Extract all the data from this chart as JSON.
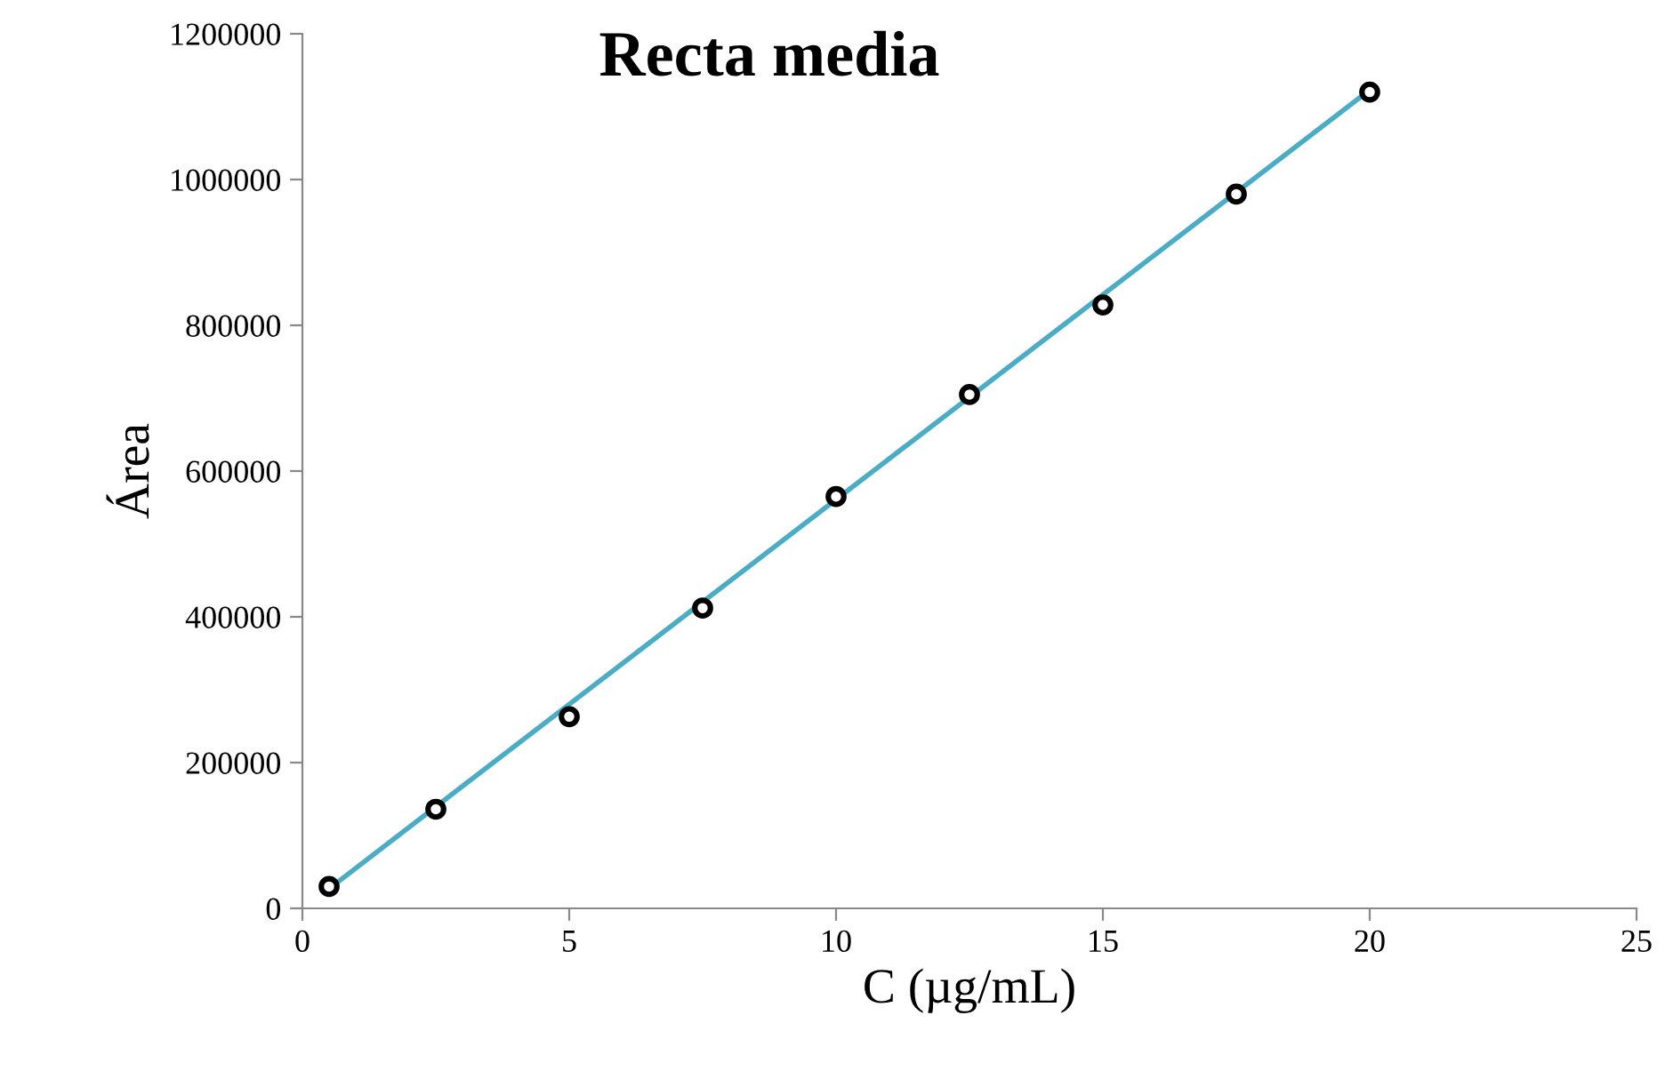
{
  "chart_data": {
    "type": "scatter",
    "title": "Recta media",
    "xlabel": "C (µg/mL)",
    "ylabel": "Área",
    "x": [
      0.5,
      2.5,
      5,
      7.5,
      10,
      12.5,
      15,
      17.5,
      20
    ],
    "series": [
      {
        "color": "#000000",
        "marker": "circle",
        "values": [
          30000,
          136000,
          263000,
          412000,
          565000,
          705000,
          828000,
          980000,
          1120000
        ]
      },
      {
        "type": "line",
        "color": "#4bacc6",
        "marker": "none",
        "x": [
          0.5,
          20
        ],
        "values": [
          27000,
          1123000
        ]
      }
    ],
    "xlim": [
      0,
      25
    ],
    "xticks": [
      0,
      5,
      10,
      15,
      20,
      25
    ],
    "ylim": [
      0,
      1200000
    ],
    "yticks": [
      0,
      200000,
      400000,
      600000,
      800000,
      1000000,
      1200000
    ],
    "grid": false,
    "legend": false
  }
}
